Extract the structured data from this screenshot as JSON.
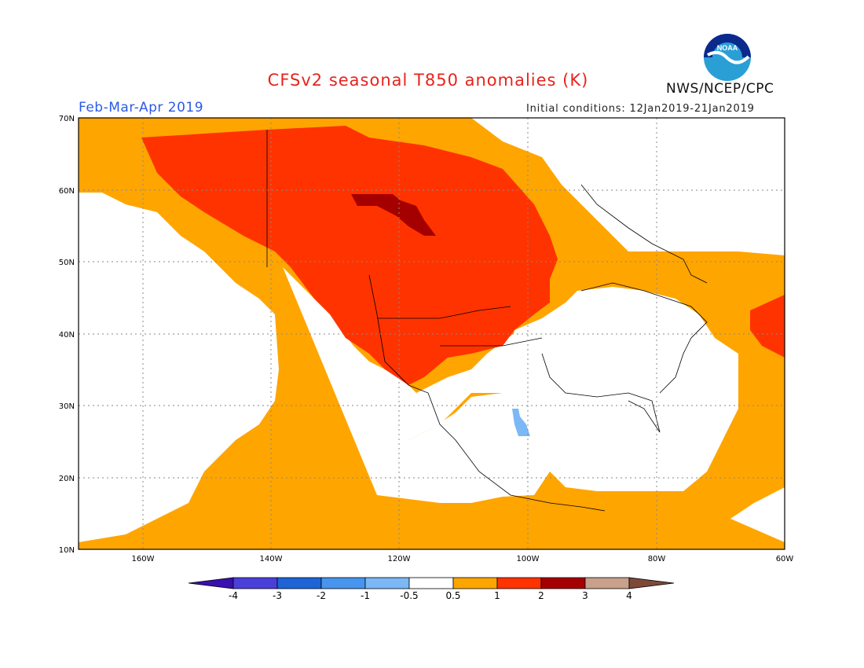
{
  "title": "CFSv2 seasonal T850 anomalies (K)",
  "period": "Feb-Mar-Apr 2019",
  "initial_conditions": "Initial conditions: 12Jan2019-21Jan2019",
  "agency": "NWS/NCEP/CPC",
  "logo_text": "NOAA",
  "map": {
    "lon_ticks": [
      "160W",
      "140W",
      "120W",
      "100W",
      "80W",
      "60W"
    ],
    "lat_ticks": [
      "70N",
      "60N",
      "50N",
      "40N",
      "30N",
      "20N",
      "10N"
    ]
  },
  "colorbar": {
    "labels": [
      "-4",
      "-3",
      "-2",
      "-1",
      "-0.5",
      "0.5",
      "1",
      "2",
      "3",
      "4"
    ],
    "colors": [
      "#3a0fb0",
      "#4b3fd9",
      "#1e64d6",
      "#4795ee",
      "#7bb8f5",
      "#ffffff",
      "#ffa500",
      "#ff3300",
      "#a50000",
      "#c8a08c",
      "#7d4a3a"
    ]
  },
  "regions": {
    "ocean_warm": "#ffa500",
    "warm": "#ff3300",
    "hot": "#a50000",
    "cool": "#7bb8f5",
    "neutral": "#ffffff"
  }
}
